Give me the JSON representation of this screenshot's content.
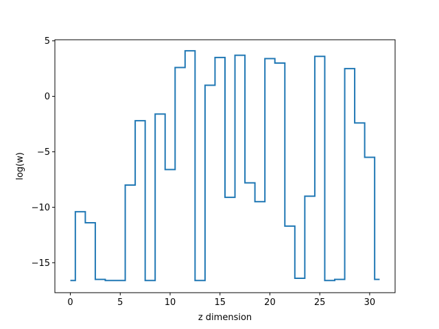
{
  "chart_data": {
    "type": "line",
    "step": "mid",
    "title": "",
    "xlabel": "z dimension",
    "ylabel": "log(w)",
    "xlim": [
      -1.55,
      32.55
    ],
    "ylim": [
      -17.7,
      5.1
    ],
    "xticks": [
      0,
      5,
      10,
      15,
      20,
      25,
      30
    ],
    "yticks": [
      -15,
      -10,
      -5,
      0,
      5
    ],
    "grid": false,
    "legend": "none",
    "series": [
      {
        "color": "#1f77b4",
        "x": [
          0,
          1,
          2,
          3,
          4,
          5,
          6,
          7,
          8,
          9,
          10,
          11,
          12,
          13,
          14,
          15,
          16,
          17,
          18,
          19,
          20,
          21,
          22,
          23,
          24,
          25,
          26,
          27,
          28,
          29,
          30,
          31
        ],
        "y": [
          -16.6,
          -10.4,
          -11.4,
          -16.5,
          -16.6,
          -16.6,
          -8.0,
          -2.2,
          -16.6,
          -1.6,
          -6.6,
          2.6,
          4.1,
          -16.6,
          1.0,
          3.5,
          -9.1,
          3.7,
          -7.8,
          -9.5,
          3.4,
          3.0,
          -11.7,
          -16.4,
          -9.0,
          3.6,
          -16.6,
          -16.5,
          2.5,
          -2.4,
          -5.5,
          -16.5
        ]
      }
    ]
  }
}
